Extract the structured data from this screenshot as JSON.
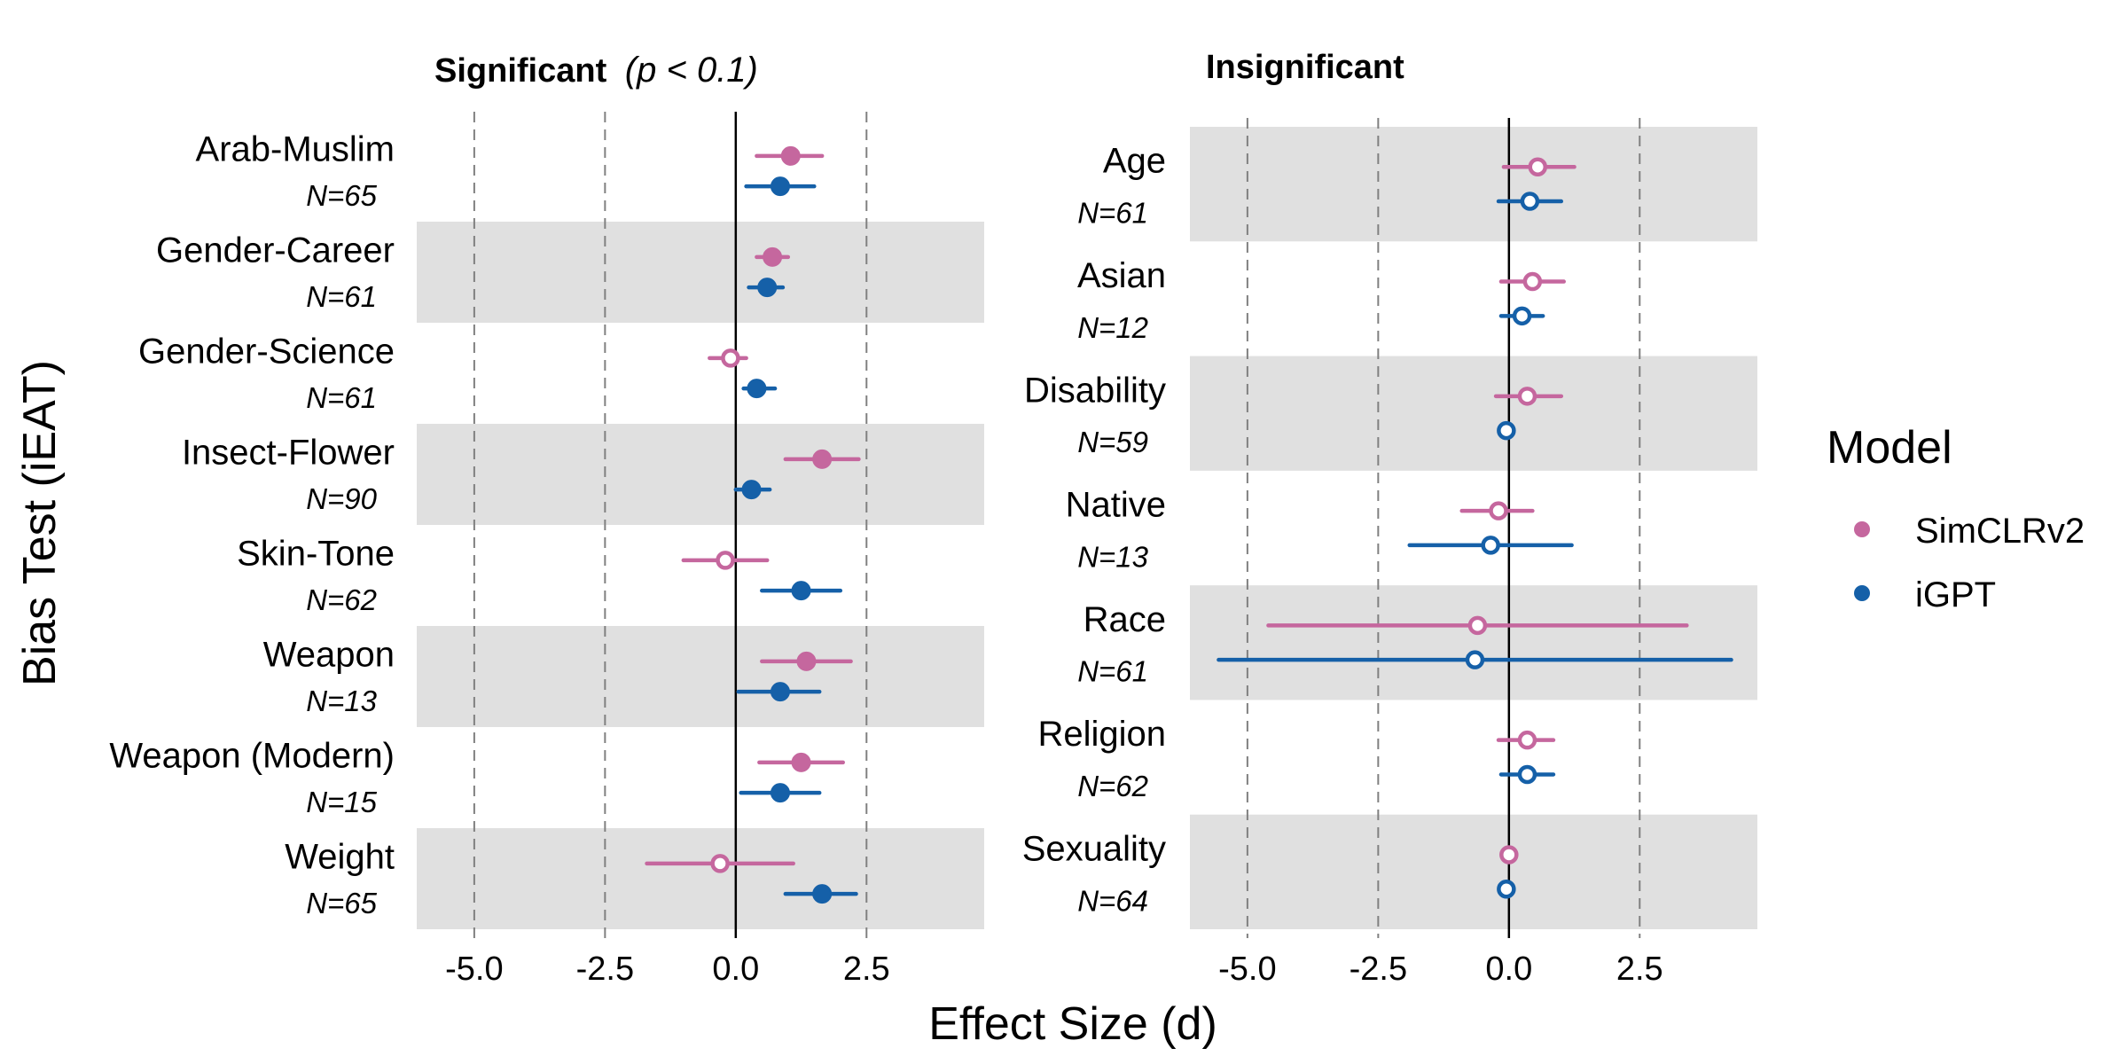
{
  "chart_data": {
    "type": "forest",
    "ylabel": "Bias Test (iEAT)",
    "xlabel": "Effect Size (d)",
    "xlim": [
      -6.1,
      4.75
    ],
    "xticks": [
      -5.0,
      -2.5,
      0.0,
      2.5
    ],
    "xtick_labels": [
      "-5.0",
      "-2.5",
      "0.0",
      "2.5"
    ],
    "legend": {
      "title": "Model",
      "position": "right",
      "entries": [
        {
          "name": "SimCLRv2",
          "color": "#C5679E"
        },
        {
          "name": "iGPT",
          "color": "#1560A8"
        }
      ]
    },
    "colors": {
      "SimCLRv2": "#C5679E",
      "iGPT": "#1560A8",
      "band": "#E0E0E0",
      "gridline": "#808080"
    },
    "panels": [
      {
        "title": "Significant",
        "title_suffix": "(p < 0.1)",
        "rows": [
          {
            "label": "Arab-Muslim",
            "n": "N=65",
            "SimCLRv2": {
              "est": 1.05,
              "lo": 0.4,
              "hi": 1.65,
              "sig": true
            },
            "iGPT": {
              "est": 0.85,
              "lo": 0.2,
              "hi": 1.5,
              "sig": true
            }
          },
          {
            "label": "Gender-Career",
            "n": "N=61",
            "SimCLRv2": {
              "est": 0.7,
              "lo": 0.4,
              "hi": 1.0,
              "sig": true
            },
            "iGPT": {
              "est": 0.6,
              "lo": 0.25,
              "hi": 0.9,
              "sig": true
            }
          },
          {
            "label": "Gender-Science",
            "n": "N=61",
            "SimCLRv2": {
              "est": -0.1,
              "lo": -0.5,
              "hi": 0.2,
              "sig": false
            },
            "iGPT": {
              "est": 0.4,
              "lo": 0.15,
              "hi": 0.75,
              "sig": true
            }
          },
          {
            "label": "Insect-Flower",
            "n": "N=90",
            "SimCLRv2": {
              "est": 1.65,
              "lo": 0.95,
              "hi": 2.35,
              "sig": true
            },
            "iGPT": {
              "est": 0.3,
              "lo": 0.0,
              "hi": 0.65,
              "sig": true
            }
          },
          {
            "label": "Skin-Tone",
            "n": "N=62",
            "SimCLRv2": {
              "est": -0.2,
              "lo": -1.0,
              "hi": 0.6,
              "sig": false
            },
            "iGPT": {
              "est": 1.25,
              "lo": 0.5,
              "hi": 2.0,
              "sig": true
            }
          },
          {
            "label": "Weapon",
            "n": "N=13",
            "SimCLRv2": {
              "est": 1.35,
              "lo": 0.5,
              "hi": 2.2,
              "sig": true
            },
            "iGPT": {
              "est": 0.85,
              "lo": 0.05,
              "hi": 1.6,
              "sig": true
            }
          },
          {
            "label": "Weapon (Modern)",
            "n": "N=15",
            "SimCLRv2": {
              "est": 1.25,
              "lo": 0.45,
              "hi": 2.05,
              "sig": true
            },
            "iGPT": {
              "est": 0.85,
              "lo": 0.1,
              "hi": 1.6,
              "sig": true
            }
          },
          {
            "label": "Weight",
            "n": "N=65",
            "SimCLRv2": {
              "est": -0.3,
              "lo": -1.7,
              "hi": 1.1,
              "sig": false
            },
            "iGPT": {
              "est": 1.65,
              "lo": 0.95,
              "hi": 2.3,
              "sig": true
            }
          }
        ]
      },
      {
        "title": "Insignificant",
        "title_suffix": "",
        "rows": [
          {
            "label": "Age",
            "n": "N=61",
            "SimCLRv2": {
              "est": 0.55,
              "lo": -0.1,
              "hi": 1.25,
              "sig": false
            },
            "iGPT": {
              "est": 0.4,
              "lo": -0.2,
              "hi": 1.0,
              "sig": false
            }
          },
          {
            "label": "Asian",
            "n": "N=12",
            "SimCLRv2": {
              "est": 0.45,
              "lo": -0.15,
              "hi": 1.05,
              "sig": false
            },
            "iGPT": {
              "est": 0.25,
              "lo": -0.15,
              "hi": 0.65,
              "sig": false
            }
          },
          {
            "label": "Disability",
            "n": "N=59",
            "SimCLRv2": {
              "est": 0.35,
              "lo": -0.25,
              "hi": 1.0,
              "sig": false
            },
            "iGPT": {
              "est": -0.05,
              "lo": -0.05,
              "hi": -0.05,
              "sig": false
            }
          },
          {
            "label": "Native",
            "n": "N=13",
            "SimCLRv2": {
              "est": -0.2,
              "lo": -0.9,
              "hi": 0.45,
              "sig": false
            },
            "iGPT": {
              "est": -0.35,
              "lo": -1.9,
              "hi": 1.2,
              "sig": false
            }
          },
          {
            "label": "Race",
            "n": "N=61",
            "SimCLRv2": {
              "est": -0.6,
              "lo": -4.6,
              "hi": 3.4,
              "sig": false
            },
            "iGPT": {
              "est": -0.65,
              "lo": -5.55,
              "hi": 4.25,
              "sig": false
            }
          },
          {
            "label": "Religion",
            "n": "N=62",
            "SimCLRv2": {
              "est": 0.35,
              "lo": -0.2,
              "hi": 0.85,
              "sig": false
            },
            "iGPT": {
              "est": 0.35,
              "lo": -0.15,
              "hi": 0.85,
              "sig": false
            }
          },
          {
            "label": "Sexuality",
            "n": "N=64",
            "SimCLRv2": {
              "est": 0.0,
              "lo": 0.0,
              "hi": 0.0,
              "sig": false
            },
            "iGPT": {
              "est": -0.05,
              "lo": -0.05,
              "hi": -0.05,
              "sig": false
            }
          }
        ]
      }
    ]
  }
}
